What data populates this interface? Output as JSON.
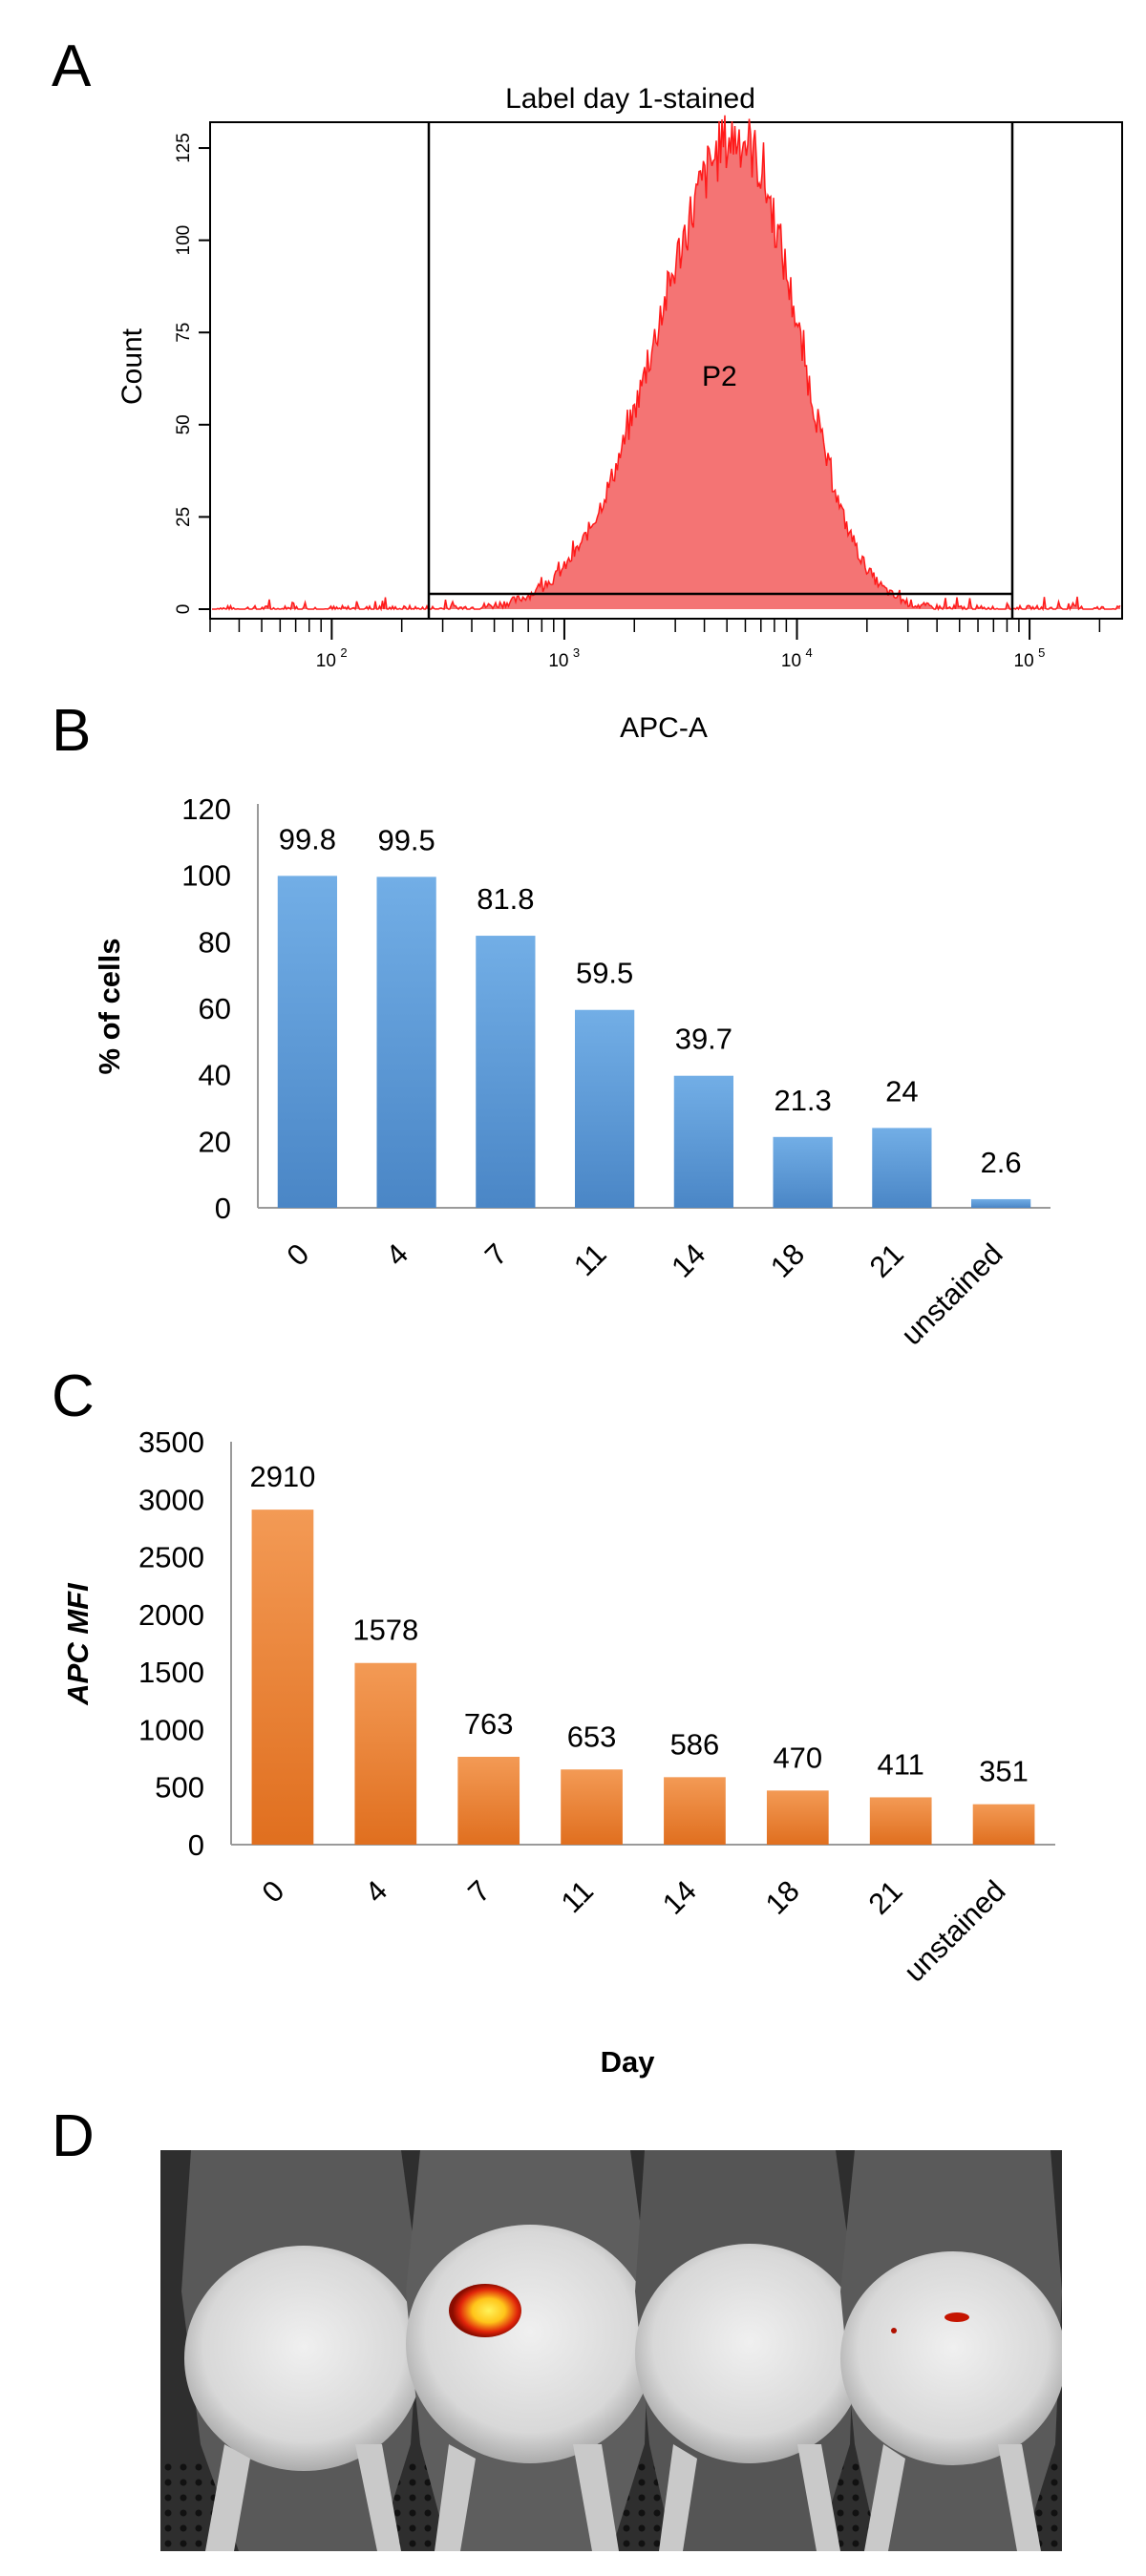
{
  "panels": {
    "A": {
      "letter": "A"
    },
    "B": {
      "letter": "B"
    },
    "C": {
      "letter": "C"
    },
    "D": {
      "letter": "D"
    }
  },
  "photo": {
    "description_icon": "mouse-bioluminescence-image",
    "colors": {
      "background": "#2a2a2a",
      "fur": "#5c5c5c",
      "skin": "#e2e2e2",
      "signal_hot": "#ffd21e",
      "signal_warm": "#d11a00"
    }
  },
  "chart_data": [
    {
      "type": "histogram",
      "panel": "A",
      "title": "Label day 1-stained",
      "xlabel": "APC-A",
      "ylabel": "Count",
      "x_scale": "log",
      "xlim": [
        30,
        250000
      ],
      "ylim": [
        0,
        132
      ],
      "y_ticks": [
        "0",
        "25",
        "50",
        "75",
        "100",
        "125"
      ],
      "x_tick_labels": [
        {
          "base": "10",
          "exp": "2",
          "value": 100
        },
        {
          "base": "10",
          "exp": "3",
          "value": 1000
        },
        {
          "base": "10",
          "exp": "4",
          "value": 10000
        },
        {
          "base": "10",
          "exp": "5",
          "value": 100000
        }
      ],
      "gate": {
        "name": "P2",
        "x_range": [
          280,
          88000
        ],
        "y_level": 6
      },
      "distribution": {
        "peak_x": 5600,
        "peak_count": 128,
        "log_sd_left": 0.34,
        "log_sd_right": 0.25
      },
      "color": "#f25c5c",
      "line_color": "#ff1a1a"
    },
    {
      "type": "bar",
      "panel": "B",
      "categories": [
        "0",
        "4",
        "7",
        "11",
        "14",
        "18",
        "21",
        "unstained"
      ],
      "values": [
        99.8,
        99.5,
        81.8,
        59.5,
        39.7,
        21.3,
        24,
        2.6
      ],
      "data_labels": [
        "99.8",
        "99.5",
        "81.8",
        "59.5",
        "39.7",
        "21.3",
        "24",
        "2.6"
      ],
      "ylabel": "% of cells",
      "xlabel": "",
      "ylim": [
        0,
        120
      ],
      "y_ticks": [
        "0",
        "20",
        "40",
        "60",
        "80",
        "100",
        "120"
      ],
      "color": "#5b9bd5"
    },
    {
      "type": "bar",
      "panel": "C",
      "categories": [
        "0",
        "4",
        "7",
        "11",
        "14",
        "18",
        "21",
        "unstained"
      ],
      "values": [
        2910,
        1578,
        763,
        653,
        586,
        470,
        411,
        351
      ],
      "data_labels": [
        "2910",
        "1578",
        "763",
        "653",
        "586",
        "470",
        "411",
        "351"
      ],
      "ylabel": "APC MFI",
      "xlabel": "Day",
      "ylim": [
        0,
        3500
      ],
      "y_ticks": [
        "0",
        "500",
        "1000",
        "1500",
        "2000",
        "2500",
        "3000",
        "3500"
      ],
      "color": "#ed7d31"
    }
  ]
}
